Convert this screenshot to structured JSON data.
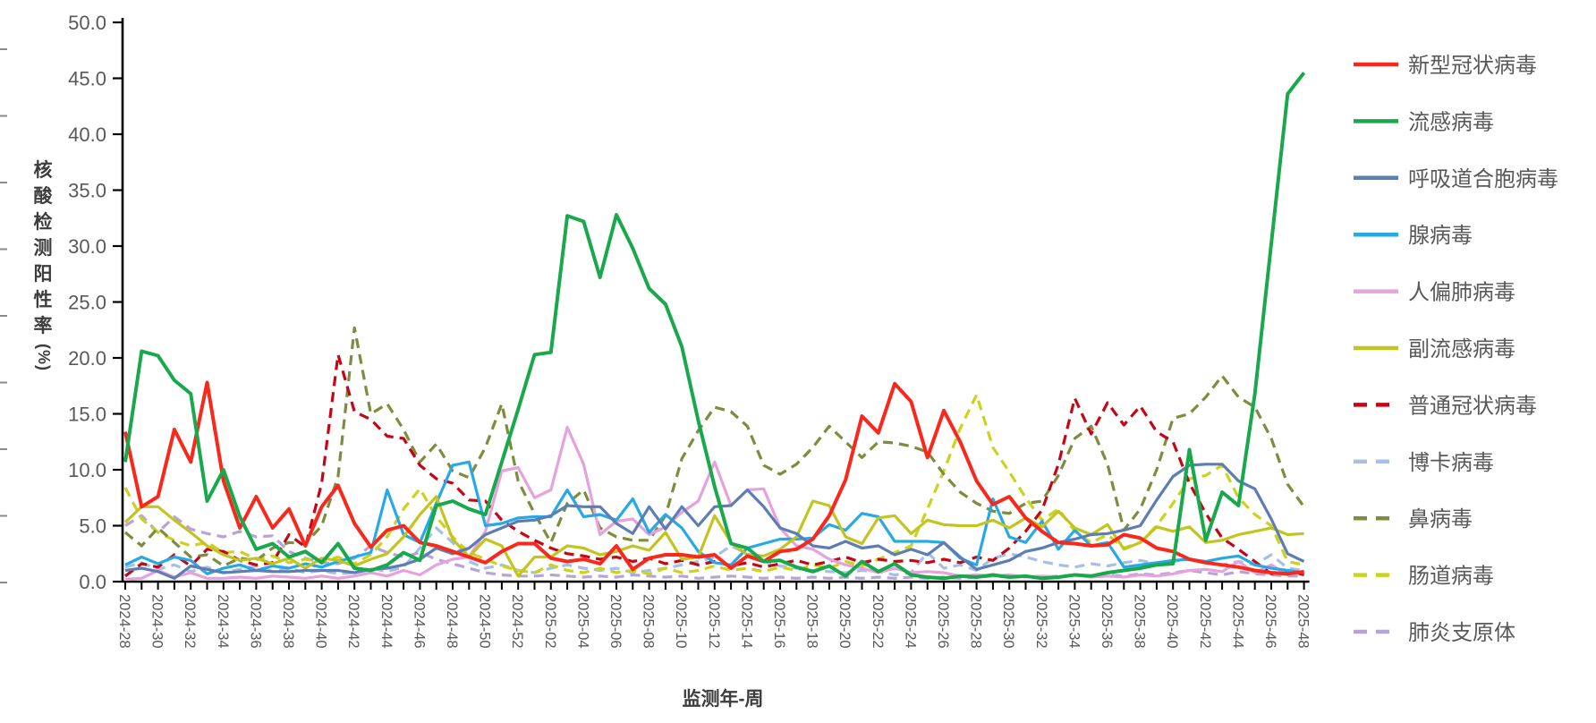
{
  "page": {
    "background": "#FFFFFF",
    "axis_color": "#000000",
    "tick_label_color": "#595959"
  },
  "axes": {
    "y_label": "核酸检测阳性率(%)",
    "x_label": "监测年-周",
    "y_ticks": [
      "0.0",
      "5.0",
      "10.0",
      "15.0",
      "20.0",
      "25.0",
      "30.0",
      "35.0",
      "40.0",
      "45.0",
      "50.0"
    ],
    "y_min": 0,
    "y_max": 50,
    "y_step": 5,
    "x_label_every": 2
  },
  "chart_data": {
    "type": "line",
    "title": "",
    "xlabel": "监测年-周",
    "ylabel": "核酸检测阳性率(%)",
    "ylim": [
      0,
      50
    ],
    "grid": false,
    "legend_position": "right",
    "categories": [
      "2024-28",
      "2024-29",
      "2024-30",
      "2024-31",
      "2024-32",
      "2024-33",
      "2024-34",
      "2024-35",
      "2024-36",
      "2024-37",
      "2024-38",
      "2024-39",
      "2024-40",
      "2024-41",
      "2024-42",
      "2024-43",
      "2024-44",
      "2024-45",
      "2024-46",
      "2024-47",
      "2024-48",
      "2024-49",
      "2024-50",
      "2024-51",
      "2024-52",
      "2025-01",
      "2025-02",
      "2025-03",
      "2025-04",
      "2025-05",
      "2025-06",
      "2025-07",
      "2025-08",
      "2025-09",
      "2025-10",
      "2025-11",
      "2025-12",
      "2025-13",
      "2025-14",
      "2025-15",
      "2025-16",
      "2025-17",
      "2025-18",
      "2025-19",
      "2025-20",
      "2025-21",
      "2025-22",
      "2025-23",
      "2025-24",
      "2025-25",
      "2025-26",
      "2025-27",
      "2025-28",
      "2025-29",
      "2025-30",
      "2025-31",
      "2025-32",
      "2025-33",
      "2025-34",
      "2025-35",
      "2025-36",
      "2025-37",
      "2025-38",
      "2025-39",
      "2025-40",
      "2025-41",
      "2025-42",
      "2025-43",
      "2025-44",
      "2025-45",
      "2025-46",
      "2025-47",
      "2025-48"
    ],
    "series": [
      {
        "key": "covid",
        "name": "新型冠状病毒",
        "color": "#F9281D",
        "dashed": false,
        "width": 4,
        "values": [
          13.4,
          6.7,
          7.6,
          13.6,
          10.7,
          17.8,
          9.0,
          4.8,
          7.6,
          4.8,
          6.5,
          3.2,
          6.7,
          8.6,
          5.2,
          3.1,
          4.6,
          5.0,
          3.5,
          3.2,
          2.7,
          2.2,
          1.7,
          2.7,
          3.4,
          3.4,
          2.1,
          1.8,
          2.0,
          1.6,
          3.2,
          1.1,
          2.1,
          2.4,
          2.4,
          2.2,
          2.4,
          1.2,
          2.3,
          1.8,
          2.7,
          2.9,
          3.8,
          5.9,
          9.1,
          14.8,
          13.3,
          17.7,
          16.1,
          11.1,
          15.3,
          12.5,
          9.0,
          6.9,
          7.6,
          5.7,
          4.5,
          3.5,
          3.4,
          3.2,
          3.3,
          4.2,
          3.9,
          3.0,
          2.7,
          2.0,
          1.7,
          1.5,
          1.3,
          1.0,
          0.8,
          0.7,
          0.9
        ]
      },
      {
        "key": "flu",
        "name": "流感病毒",
        "color": "#1AA84C",
        "dashed": false,
        "width": 4,
        "values": [
          10.7,
          20.6,
          20.2,
          18.0,
          16.8,
          7.2,
          10.0,
          5.8,
          2.9,
          3.4,
          2.2,
          2.7,
          1.7,
          3.4,
          1.2,
          1.0,
          1.5,
          2.6,
          1.9,
          6.8,
          7.2,
          6.5,
          6.0,
          10.7,
          15.4,
          20.3,
          20.5,
          32.7,
          32.2,
          27.2,
          32.8,
          29.8,
          26.2,
          24.8,
          21.0,
          14.4,
          8.5,
          3.4,
          3.0,
          1.8,
          1.9,
          1.3,
          0.9,
          1.4,
          0.5,
          1.8,
          0.9,
          1.6,
          0.6,
          0.4,
          0.3,
          0.5,
          0.4,
          0.6,
          0.4,
          0.5,
          0.3,
          0.4,
          0.6,
          0.5,
          0.8,
          1.0,
          1.2,
          1.5,
          1.6,
          11.8,
          3.7,
          8.0,
          6.8,
          16.8,
          30.2,
          43.6,
          45.5
        ]
      },
      {
        "key": "rsv",
        "name": "呼吸道合胞病毒",
        "color": "#5D7DB3",
        "dashed": false,
        "width": 3.2,
        "values": [
          1.0,
          1.2,
          0.9,
          0.3,
          1.4,
          1.1,
          0.8,
          0.9,
          1.0,
          0.9,
          0.9,
          1.0,
          1.0,
          1.0,
          0.8,
          1.1,
          1.2,
          1.5,
          2.0,
          3.0,
          2.5,
          3.0,
          4.2,
          4.8,
          5.4,
          5.5,
          5.9,
          6.8,
          6.7,
          6.7,
          5.2,
          4.3,
          6.7,
          4.7,
          6.7,
          5.0,
          6.7,
          6.8,
          8.2,
          6.7,
          4.8,
          4.3,
          3.2,
          3.0,
          3.6,
          3.0,
          3.2,
          2.4,
          2.9,
          2.4,
          3.5,
          2.2,
          1.1,
          1.5,
          1.9,
          2.7,
          3.0,
          3.5,
          3.8,
          4.2,
          4.3,
          4.6,
          5.0,
          7.3,
          9.4,
          10.4,
          10.5,
          10.5,
          9.0,
          8.3,
          5.6,
          2.5,
          1.8
        ]
      },
      {
        "key": "adeno",
        "name": "腺病毒",
        "color": "#26A9E6",
        "dashed": false,
        "width": 3.2,
        "values": [
          1.5,
          2.2,
          1.6,
          2.2,
          1.9,
          0.7,
          1.2,
          1.5,
          1.0,
          1.4,
          1.2,
          1.6,
          1.3,
          1.8,
          2.2,
          2.6,
          8.2,
          4.2,
          3.5,
          7.0,
          10.4,
          10.7,
          5.0,
          5.2,
          5.7,
          5.8,
          5.8,
          8.2,
          5.8,
          6.0,
          5.5,
          7.4,
          4.4,
          6.0,
          4.8,
          2.7,
          1.7,
          1.5,
          3.0,
          3.4,
          3.8,
          3.8,
          3.9,
          5.1,
          4.6,
          6.1,
          5.8,
          3.6,
          3.6,
          3.6,
          3.5,
          2.1,
          1.5,
          7.4,
          4.0,
          3.5,
          5.4,
          2.9,
          4.6,
          3.2,
          3.5,
          1.3,
          1.5,
          1.7,
          1.9,
          2.0,
          1.8,
          2.1,
          2.3,
          1.5,
          1.2,
          1.0,
          0.8
        ]
      },
      {
        "key": "hmpv",
        "name": "人偏肺病毒",
        "color": "#E6A2DC",
        "dashed": false,
        "width": 3.2,
        "values": [
          0.2,
          0.3,
          1.0,
          0.4,
          0.8,
          0.3,
          0.3,
          0.4,
          0.3,
          0.5,
          0.4,
          0.3,
          0.5,
          0.3,
          0.5,
          0.8,
          0.5,
          1.0,
          0.6,
          1.5,
          2.0,
          2.2,
          4.5,
          9.9,
          10.2,
          7.5,
          8.2,
          13.8,
          10.5,
          4.2,
          5.4,
          5.6,
          4.2,
          4.9,
          6.2,
          7.2,
          10.7,
          6.8,
          8.2,
          8.3,
          4.8,
          3.2,
          2.9,
          2.0,
          1.5,
          1.2,
          0.8,
          1.2,
          0.8,
          0.9,
          0.8,
          0.5,
          0.6,
          0.5,
          0.6,
          0.4,
          0.5,
          0.4,
          0.6,
          0.4,
          0.5,
          0.4,
          0.6,
          0.5,
          0.7,
          1.0,
          1.1,
          0.9,
          1.8,
          0.8,
          1.5,
          0.6,
          0.9
        ]
      },
      {
        "key": "paraflu",
        "name": "副流感病毒",
        "color": "#C2C520",
        "dashed": false,
        "width": 3.2,
        "values": [
          5.3,
          6.7,
          6.7,
          5.5,
          4.4,
          3.2,
          2.4,
          1.9,
          2.1,
          1.6,
          2.1,
          1.2,
          2.1,
          1.9,
          1.4,
          2.0,
          2.5,
          4.0,
          6.0,
          7.6,
          3.8,
          2.2,
          3.8,
          3.2,
          0.5,
          2.2,
          2.2,
          3.2,
          3.0,
          2.4,
          2.7,
          3.2,
          2.8,
          4.4,
          2.0,
          2.2,
          5.9,
          3.5,
          2.4,
          2.3,
          2.9,
          4.0,
          7.2,
          6.8,
          4.0,
          3.4,
          5.7,
          5.9,
          4.3,
          5.5,
          5.1,
          5.0,
          5.0,
          5.5,
          4.8,
          5.7,
          4.9,
          6.3,
          4.8,
          4.2,
          5.1,
          2.9,
          3.5,
          4.9,
          4.5,
          4.9,
          3.5,
          3.7,
          4.2,
          4.5,
          4.8,
          4.2,
          4.3
        ]
      },
      {
        "key": "corona",
        "name": "普通冠状病毒",
        "color": "#C30716",
        "dashed": true,
        "width": 3.2,
        "values": [
          0.5,
          1.6,
          1.3,
          2.4,
          1.4,
          2.9,
          2.7,
          1.9,
          1.5,
          1.7,
          4.2,
          3.1,
          8.8,
          20.3,
          15.2,
          14.5,
          13.0,
          12.8,
          10.4,
          9.2,
          8.8,
          7.3,
          7.2,
          5.5,
          4.5,
          3.7,
          3.0,
          2.5,
          2.3,
          2.0,
          2.2,
          1.8,
          2.1,
          1.6,
          1.9,
          1.5,
          1.8,
          1.4,
          1.7,
          1.3,
          1.6,
          1.9,
          1.5,
          1.8,
          2.2,
          1.7,
          2.0,
          1.8,
          1.9,
          1.7,
          2.0,
          1.7,
          2.2,
          1.9,
          3.0,
          4.5,
          6.4,
          10.5,
          16.4,
          13.2,
          16.0,
          14.0,
          15.7,
          13.4,
          12.5,
          8.8,
          6.1,
          3.9,
          2.9,
          1.8,
          0.7,
          1.0,
          0.6
        ]
      },
      {
        "key": "boca",
        "name": "博卡病毒",
        "color": "#A6C0E4",
        "dashed": true,
        "width": 3.2,
        "values": [
          1.3,
          1.7,
          1.1,
          1.5,
          0.9,
          1.3,
          0.8,
          1.1,
          1.4,
          0.9,
          1.2,
          0.8,
          1.0,
          0.7,
          0.8,
          1.2,
          0.9,
          1.3,
          3.0,
          4.8,
          3.5,
          1.8,
          1.2,
          1.5,
          1.0,
          0.8,
          1.2,
          1.5,
          1.2,
          1.0,
          1.2,
          0.8,
          1.0,
          1.2,
          1.5,
          1.8,
          2.2,
          3.2,
          2.5,
          1.8,
          1.4,
          1.2,
          1.0,
          0.9,
          0.8,
          1.0,
          0.9,
          0.6,
          0.8,
          2.6,
          1.2,
          1.5,
          1.0,
          2.1,
          2.5,
          2.2,
          1.8,
          1.5,
          1.3,
          1.6,
          1.4,
          1.7,
          1.9,
          1.6,
          1.8,
          2.0,
          1.7,
          1.5,
          1.8,
          1.5,
          2.4,
          1.2,
          1.0
        ]
      },
      {
        "key": "rhino",
        "name": "鼻病毒",
        "color": "#7D8D3D",
        "dashed": true,
        "width": 3.2,
        "values": [
          4.4,
          3.2,
          4.8,
          3.5,
          2.2,
          2.4,
          1.4,
          2.1,
          1.9,
          3.0,
          3.5,
          3.4,
          5.0,
          9.4,
          22.7,
          15.0,
          15.9,
          13.6,
          10.7,
          12.3,
          9.9,
          9.3,
          12.0,
          15.9,
          9.0,
          6.1,
          3.5,
          7.0,
          8.2,
          4.8,
          4.0,
          3.7,
          3.7,
          5.9,
          11.0,
          13.5,
          15.6,
          15.2,
          13.9,
          10.4,
          9.6,
          10.5,
          12.0,
          13.9,
          12.5,
          11.1,
          12.5,
          12.4,
          12.1,
          11.6,
          9.6,
          8.0,
          7.0,
          6.3,
          6.1,
          7.0,
          7.2,
          9.5,
          12.8,
          13.9,
          10.5,
          4.6,
          6.5,
          10.0,
          14.6,
          15.0,
          16.5,
          18.4,
          16.5,
          15.6,
          12.8,
          8.7,
          6.7
        ]
      },
      {
        "key": "entero",
        "name": "肠道病毒",
        "color": "#CBD320",
        "dashed": true,
        "width": 3.2,
        "values": [
          8.4,
          5.6,
          4.4,
          3.7,
          3.2,
          3.5,
          2.6,
          2.7,
          2.0,
          2.3,
          1.7,
          2.0,
          1.8,
          2.2,
          1.6,
          2.4,
          4.0,
          6.5,
          8.3,
          5.8,
          4.0,
          2.6,
          2.0,
          1.4,
          1.0,
          0.8,
          1.5,
          1.0,
          0.8,
          1.2,
          0.8,
          1.0,
          0.7,
          1.2,
          0.8,
          1.0,
          1.4,
          1.0,
          1.2,
          0.9,
          1.3,
          1.0,
          1.5,
          1.2,
          1.8,
          1.4,
          2.0,
          2.6,
          3.2,
          6.5,
          9.9,
          13.7,
          16.7,
          12.0,
          9.8,
          7.5,
          5.5,
          6.5,
          4.5,
          3.5,
          4.2,
          3.0,
          3.5,
          5.0,
          7.0,
          9.2,
          9.5,
          10.4,
          7.5,
          6.0,
          5.0,
          1.8,
          1.5
        ]
      },
      {
        "key": "myco",
        "name": "肺炎支原体",
        "color": "#B7A4D7",
        "dashed": true,
        "width": 3.2,
        "values": [
          5.0,
          5.9,
          4.4,
          5.8,
          4.7,
          4.3,
          4.0,
          4.5,
          4.0,
          4.1,
          2.7,
          2.1,
          1.7,
          1.6,
          2.1,
          3.2,
          2.6,
          2.2,
          2.6,
          2.0,
          1.6,
          1.2,
          0.8,
          0.6,
          0.5,
          0.5,
          0.6,
          0.5,
          0.4,
          0.5,
          0.4,
          0.6,
          0.5,
          0.4,
          0.5,
          0.3,
          0.4,
          0.5,
          0.4,
          0.3,
          0.4,
          0.3,
          0.4,
          0.3,
          0.4,
          0.3,
          0.4,
          0.3,
          0.4,
          0.3,
          0.4,
          0.3,
          0.4,
          0.5,
          0.4,
          0.5,
          0.4,
          0.5,
          0.6,
          0.5,
          0.6,
          0.5,
          0.7,
          0.6,
          0.8,
          1.0,
          0.8,
          0.6,
          0.9,
          0.7,
          0.6,
          0.5,
          0.5
        ]
      }
    ]
  }
}
